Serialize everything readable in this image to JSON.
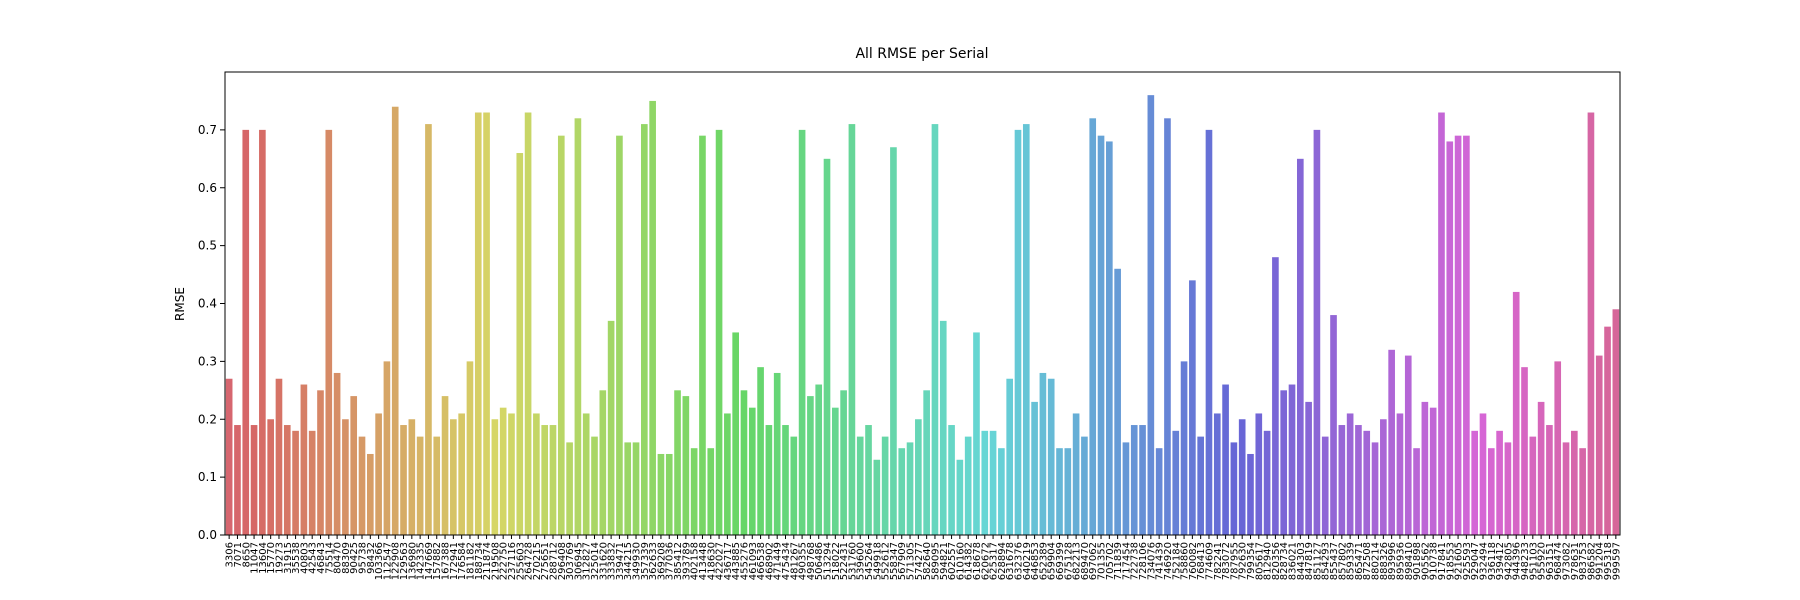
{
  "chart_data": {
    "type": "bar",
    "title": "All RMSE per Serial",
    "ylabel": "RMSE",
    "palette": "husl",
    "categories": [
      "3306",
      "7071",
      "8650",
      "11047",
      "13604",
      "15770",
      "19273",
      "31915",
      "35538",
      "40803",
      "42543",
      "46843",
      "75514",
      "80470",
      "88309",
      "90425",
      "95738",
      "98432",
      "103366",
      "112547",
      "122908",
      "129563",
      "136980",
      "142335",
      "147669",
      "157882",
      "167388",
      "172941",
      "176584",
      "181182",
      "188734",
      "211874",
      "219508",
      "222750",
      "237116",
      "255603",
      "264728",
      "270215",
      "275651",
      "288712",
      "296408",
      "303769",
      "306945",
      "312827",
      "325014",
      "331620",
      "333832",
      "339471",
      "344215",
      "349930",
      "357339",
      "362633",
      "369208",
      "377036",
      "385412",
      "393789",
      "402158",
      "413448",
      "418630",
      "422027",
      "436717",
      "443885",
      "455276",
      "461093",
      "466538",
      "468902",
      "471449",
      "475434",
      "481267",
      "490355",
      "498768",
      "506486",
      "513294",
      "518022",
      "522431",
      "531760",
      "539600",
      "545264",
      "549918",
      "552612",
      "558347",
      "567909",
      "571305",
      "574277",
      "582640",
      "589095",
      "594821",
      "602557",
      "610160",
      "614382",
      "618678",
      "620672",
      "625317",
      "628894",
      "631678",
      "632376",
      "640219",
      "646853",
      "652389",
      "659904",
      "669399",
      "675128",
      "682213",
      "689470",
      "697062",
      "701355",
      "705702",
      "711839",
      "717454",
      "722738",
      "728106",
      "734076",
      "741439",
      "746920",
      "752184",
      "758860",
      "760082",
      "768413",
      "774609",
      "782241",
      "783072",
      "787955",
      "792630",
      "799354",
      "805617",
      "812940",
      "820356",
      "828734",
      "836021",
      "844303",
      "847819",
      "851127",
      "854293",
      "855437",
      "857802",
      "859339",
      "865471",
      "872508",
      "880214",
      "888326",
      "893996",
      "895936",
      "898410",
      "901898",
      "905562",
      "910738",
      "917841",
      "918553",
      "921605",
      "925593",
      "929047",
      "932494",
      "936118",
      "939412",
      "942805",
      "944396",
      "948233",
      "951103",
      "955920",
      "963151",
      "968474",
      "973082",
      "978631",
      "983753",
      "986582",
      "991204",
      "995318",
      "999597"
    ],
    "values": [
      0.27,
      0.19,
      0.7,
      0.19,
      0.7,
      0.2,
      0.27,
      0.19,
      0.18,
      0.26,
      0.18,
      0.25,
      0.7,
      0.28,
      0.2,
      0.24,
      0.17,
      0.14,
      0.21,
      0.3,
      0.74,
      0.19,
      0.2,
      0.17,
      0.71,
      0.17,
      0.24,
      0.2,
      0.21,
      0.3,
      0.73,
      0.73,
      0.2,
      0.22,
      0.21,
      0.66,
      0.73,
      0.21,
      0.19,
      0.19,
      0.69,
      0.16,
      0.72,
      0.21,
      0.17,
      0.25,
      0.37,
      0.69,
      0.16,
      0.16,
      0.71,
      0.75,
      0.14,
      0.14,
      0.25,
      0.24,
      0.15,
      0.69,
      0.15,
      0.7,
      0.21,
      0.35,
      0.25,
      0.22,
      0.29,
      0.19,
      0.28,
      0.19,
      0.17,
      0.7,
      0.24,
      0.26,
      0.65,
      0.22,
      0.25,
      0.71,
      0.17,
      0.19,
      0.13,
      0.17,
      0.67,
      0.15,
      0.16,
      0.2,
      0.25,
      0.71,
      0.37,
      0.19,
      0.13,
      0.17,
      0.35,
      0.18,
      0.18,
      0.15,
      0.27,
      0.7,
      0.71,
      0.23,
      0.28,
      0.27,
      0.15,
      0.15,
      0.21,
      0.17,
      0.72,
      0.69,
      0.68,
      0.46,
      0.16,
      0.19,
      0.19,
      0.76,
      0.15,
      0.72,
      0.18,
      0.3,
      0.44,
      0.17,
      0.7,
      0.21,
      0.26,
      0.16,
      0.2,
      0.14,
      0.21,
      0.18,
      0.48,
      0.25,
      0.26,
      0.65,
      0.23,
      0.7,
      0.17,
      0.38,
      0.19,
      0.21,
      0.19,
      0.18,
      0.16,
      0.2,
      0.32,
      0.21,
      0.31,
      0.15,
      0.23,
      0.22,
      0.73,
      0.68,
      0.69,
      0.69,
      0.18,
      0.21,
      0.15,
      0.18,
      0.16,
      0.42,
      0.29,
      0.17,
      0.23,
      0.19,
      0.3,
      0.16,
      0.18,
      0.15,
      0.73,
      0.31,
      0.36,
      0.39
    ],
    "ylim": [
      0,
      0.8
    ],
    "yticks": [
      {
        "value": 0,
        "label": "0.0"
      },
      0.1,
      0.2,
      0.3,
      0.4,
      0.5,
      0.6,
      0.7
    ]
  }
}
